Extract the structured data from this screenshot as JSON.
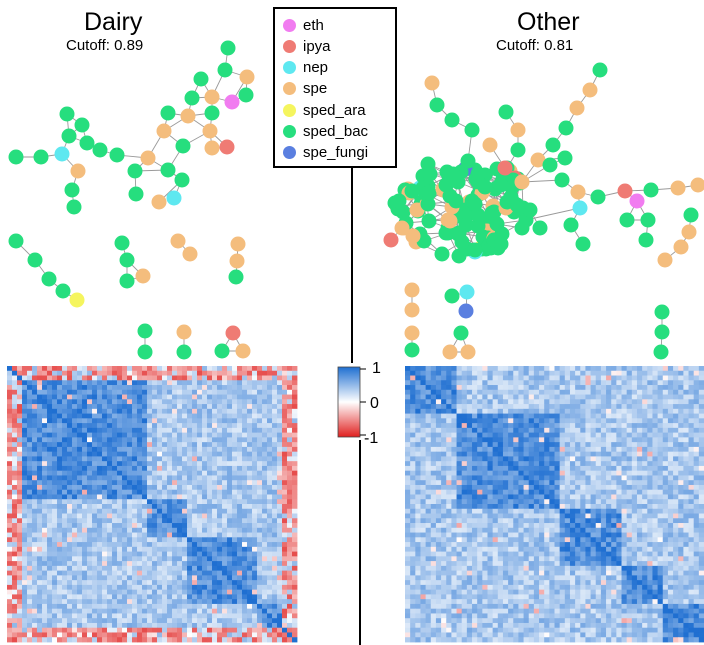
{
  "panels": {
    "dairy": {
      "title": "Dairy",
      "cutoff": "Cutoff: 0.89"
    },
    "other": {
      "title": "Other",
      "cutoff": "Cutoff: 0.81"
    }
  },
  "legend": [
    {
      "label": "eth",
      "color": "#f17cf0"
    },
    {
      "label": "ipya",
      "color": "#ef7b74"
    },
    {
      "label": "nep",
      "color": "#5ee8f0"
    },
    {
      "label": "spe",
      "color": "#f4bd7d"
    },
    {
      "label": "sped_ara",
      "color": "#f5f55e"
    },
    {
      "label": "sped_bac",
      "color": "#26de7e"
    },
    {
      "label": "spe_fungi",
      "color": "#5a7fe0"
    }
  ],
  "colorbar": {
    "ticks": [
      "1",
      "0",
      "-1"
    ],
    "colors": {
      "high": "#1f6fd1",
      "mid": "#ffffff",
      "low": "#e0201f"
    }
  },
  "edge_color": "#9a9a9a"
}
